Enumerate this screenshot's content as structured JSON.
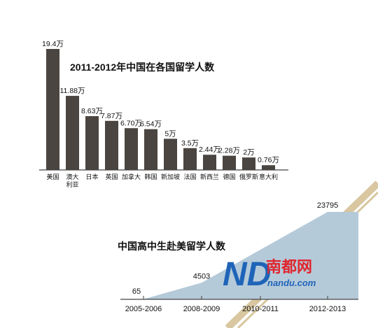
{
  "colors": {
    "bar": "#4a4540",
    "area": "#b5cad9",
    "axis": "#444444",
    "text": "#111111",
    "brand_red": "#e0262e",
    "brand_blue": "#1f64b8",
    "deco_line": "#d8c7a0"
  },
  "chart_data": [
    {
      "type": "bar",
      "title": "2011-2012年中国在各国留学人数",
      "categories": [
        "美国",
        "澳大利亚",
        "日本",
        "英国",
        "加拿大",
        "韩国",
        "新加坡",
        "法国",
        "新西兰",
        "德国",
        "俄罗斯",
        "意大利"
      ],
      "values": [
        19.4,
        11.88,
        8.63,
        7.87,
        6.7,
        6.54,
        5,
        3.5,
        2.44,
        2.28,
        2,
        0.76
      ],
      "value_labels": [
        "19.4万",
        "11.88万",
        "8.63万",
        "7.87万",
        "6.70万",
        "6.54万",
        "5万",
        "3.5万",
        "2.44万",
        "2.28万",
        "2万",
        "0.76万"
      ],
      "xlabel": "",
      "ylabel": "",
      "ylim": [
        0,
        19.4
      ],
      "grid": false
    },
    {
      "type": "area",
      "title": "中国高中生赴美留学人数",
      "categories": [
        "2005-2006",
        "2008-2009",
        "2010-2011",
        "2012-2013"
      ],
      "values": [
        65,
        4503,
        null,
        23795
      ],
      "value_labels": [
        "65",
        "4503",
        "",
        "23795"
      ],
      "xlabel": "",
      "ylabel": "",
      "ylim": [
        0,
        23795
      ],
      "grid": false
    }
  ],
  "watermark": {
    "logo_letters": "ND",
    "brand_name": "南都网",
    "url": "nandu.com"
  }
}
